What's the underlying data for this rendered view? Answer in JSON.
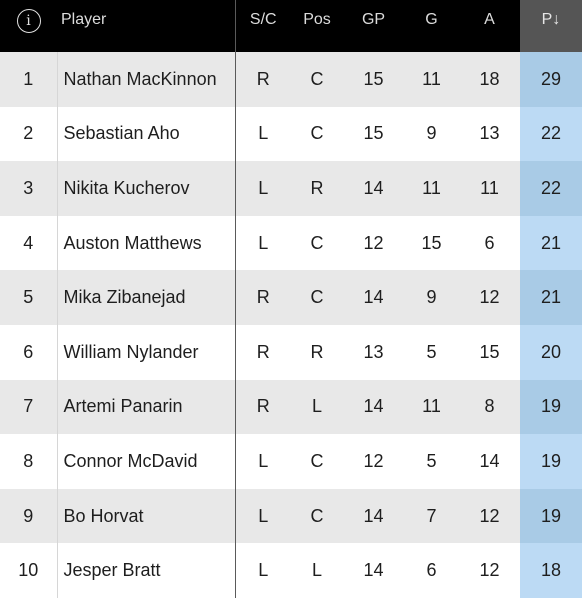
{
  "header": {
    "info_icon": "i",
    "columns": {
      "player": "Player",
      "sc": "S/C",
      "pos": "Pos",
      "gp": "GP",
      "g": "G",
      "a": "A",
      "p": "P↓"
    }
  },
  "rows": [
    {
      "rank": "1",
      "player": "Nathan MacKinnon",
      "sc": "R",
      "pos": "C",
      "gp": "15",
      "g": "11",
      "a": "18",
      "p": "29"
    },
    {
      "rank": "2",
      "player": "Sebastian Aho",
      "sc": "L",
      "pos": "C",
      "gp": "15",
      "g": "9",
      "a": "13",
      "p": "22"
    },
    {
      "rank": "3",
      "player": "Nikita Kucherov",
      "sc": "L",
      "pos": "R",
      "gp": "14",
      "g": "11",
      "a": "11",
      "p": "22"
    },
    {
      "rank": "4",
      "player": "Auston Matthews",
      "sc": "L",
      "pos": "C",
      "gp": "12",
      "g": "15",
      "a": "6",
      "p": "21"
    },
    {
      "rank": "5",
      "player": "Mika Zibanejad",
      "sc": "R",
      "pos": "C",
      "gp": "14",
      "g": "9",
      "a": "12",
      "p": "21"
    },
    {
      "rank": "6",
      "player": "William Nylander",
      "sc": "R",
      "pos": "R",
      "gp": "13",
      "g": "5",
      "a": "15",
      "p": "20"
    },
    {
      "rank": "7",
      "player": "Artemi Panarin",
      "sc": "R",
      "pos": "L",
      "gp": "14",
      "g": "11",
      "a": "8",
      "p": "19"
    },
    {
      "rank": "8",
      "player": "Connor McDavid",
      "sc": "L",
      "pos": "C",
      "gp": "12",
      "g": "5",
      "a": "14",
      "p": "19"
    },
    {
      "rank": "9",
      "player": "Bo Horvat",
      "sc": "L",
      "pos": "C",
      "gp": "14",
      "g": "7",
      "a": "12",
      "p": "19"
    },
    {
      "rank": "10",
      "player": "Jesper Bratt",
      "sc": "L",
      "pos": "L",
      "gp": "14",
      "g": "6",
      "a": "12",
      "p": "18"
    }
  ]
}
